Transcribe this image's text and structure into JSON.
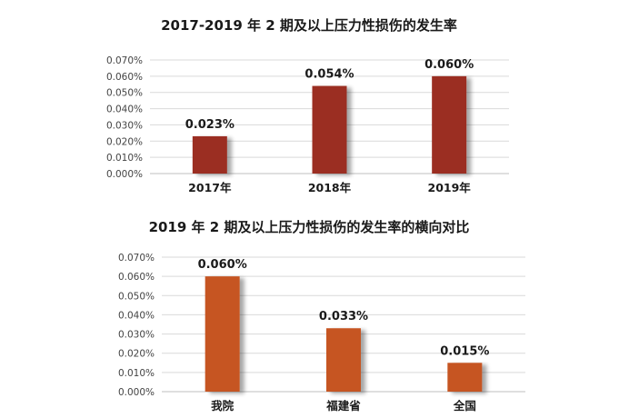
{
  "chart_data": [
    {
      "type": "bar",
      "title": "2017-2019 年 2 期及以上压力性损伤的发生率",
      "categories": [
        "2017年",
        "2018年",
        "2019年"
      ],
      "values": [
        0.023,
        0.054,
        0.06
      ],
      "data_labels": [
        "0.023%",
        "0.054%",
        "0.060%"
      ],
      "yticks": [
        "0.000%",
        "0.010%",
        "0.020%",
        "0.030%",
        "0.040%",
        "0.050%",
        "0.060%",
        "0.070%"
      ],
      "ylim": [
        0,
        0.07
      ],
      "grid": true,
      "color": "#9B2F22"
    },
    {
      "type": "bar",
      "title": "2019 年 2 期及以上压力性损伤的发生率的横向对比",
      "categories": [
        "我院",
        "福建省",
        "全国"
      ],
      "values": [
        0.06,
        0.033,
        0.015
      ],
      "data_labels": [
        "0.060%",
        "0.033%",
        "0.015%"
      ],
      "yticks": [
        "0.000%",
        "0.010%",
        "0.020%",
        "0.030%",
        "0.040%",
        "0.050%",
        "0.060%",
        "0.070%"
      ],
      "ylim": [
        0,
        0.07
      ],
      "grid": true,
      "color": "#C65423"
    }
  ]
}
